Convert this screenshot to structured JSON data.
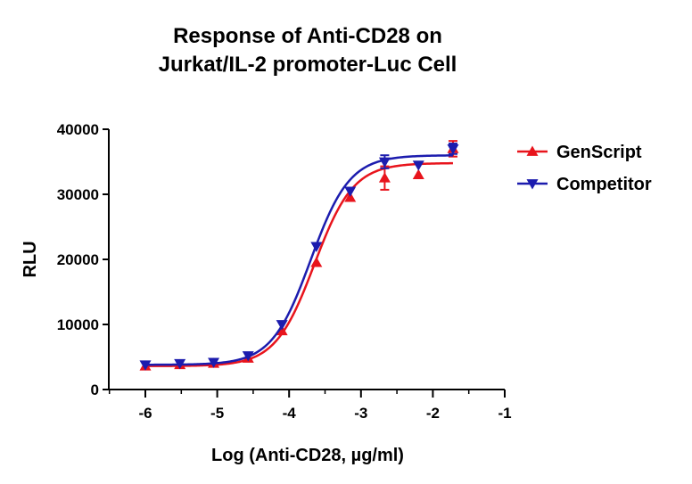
{
  "chart_data": {
    "type": "scatter",
    "title_lines": [
      "Response of Anti-CD28 on",
      "Jurkat/IL-2 promoter-Luc Cell"
    ],
    "xlabel": "Log (Anti-CD28, µg/ml)",
    "ylabel": "RLU",
    "xlim": [
      -6.5,
      -1
    ],
    "ylim": [
      0,
      40000
    ],
    "x_ticks": [
      -6,
      -5,
      -4,
      -3,
      -2,
      -1
    ],
    "x_tick_labels": [
      "-6",
      "-5",
      "-4",
      "-3",
      "-2",
      "-1"
    ],
    "y_ticks": [
      0,
      10000,
      20000,
      30000,
      40000
    ],
    "y_tick_labels": [
      "0",
      "10000",
      "20000",
      "30000",
      "40000"
    ],
    "legend_position": "top-right",
    "series": [
      {
        "name": "GenScript",
        "color": "#e8141c",
        "marker": "triangle-up",
        "x": [
          -6,
          -5.52,
          -5.05,
          -4.57,
          -4.1,
          -3.62,
          -3.15,
          -2.67,
          -2.2,
          -1.72
        ],
        "y": [
          3600,
          3800,
          4000,
          4800,
          9000,
          19500,
          29500,
          32500,
          33000,
          37000
        ],
        "err": [
          0,
          0,
          0,
          0,
          0,
          0,
          0,
          1800,
          0,
          1200
        ],
        "fit": {
          "bottom": 3600,
          "top": 34800,
          "logEC50": -3.65,
          "hill": 1.6
        }
      },
      {
        "name": "Competitor",
        "color": "#1c1cae",
        "marker": "triangle-down",
        "x": [
          -6,
          -5.52,
          -5.05,
          -4.57,
          -4.1,
          -3.62,
          -3.15,
          -2.67,
          -2.2,
          -1.72
        ],
        "y": [
          3800,
          4000,
          4200,
          5200,
          10000,
          22000,
          30500,
          35000,
          34500,
          37000
        ],
        "err": [
          0,
          0,
          0,
          0,
          0,
          0,
          0,
          1000,
          0,
          800
        ],
        "fit": {
          "bottom": 3800,
          "top": 36000,
          "logEC50": -3.7,
          "hill": 1.6
        }
      }
    ]
  }
}
